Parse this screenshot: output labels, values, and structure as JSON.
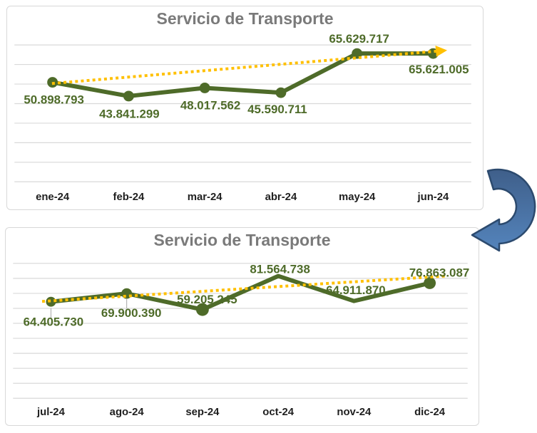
{
  "page": {
    "background": "#FFFFFF"
  },
  "colors": {
    "series_green": "#4E6B29",
    "trend_gold": "#FFC000",
    "title_gray": "#7A7A7A",
    "axis_label": "#1F1F1F",
    "gridline": "#D9D9D9",
    "leader_line": "#A6A6A6",
    "chart_border": "#D8D8D8",
    "arrow_fill_top": "#3F5F8A",
    "arrow_fill_bottom": "#5484BC",
    "arrow_outline": "#2C4A6E"
  },
  "chart_data": [
    {
      "type": "line",
      "title": "Servicio de Transporte",
      "categories": [
        "ene-24",
        "feb-24",
        "mar-24",
        "abr-24",
        "may-24",
        "jun-24"
      ],
      "series": [
        {
          "name": "Servicio de Transporte",
          "values": [
            50898793,
            43841299,
            48017562,
            45590711,
            65629717,
            65621005
          ]
        }
      ],
      "data_labels": [
        "50.898.793",
        "43.841.299",
        "48.017.562",
        "45.590.711",
        "65.629.717",
        "65.621.005"
      ],
      "trendline": {
        "style": "dotted",
        "arrowhead": true
      },
      "ylim": [
        0,
        70000000
      ],
      "gridline_step": 10000000,
      "grid": "horizontal",
      "legend": "none",
      "xlabel": "",
      "ylabel": ""
    },
    {
      "type": "line",
      "title": "Servicio de Transporte",
      "categories": [
        "jul-24",
        "ago-24",
        "sep-24",
        "oct-24",
        "nov-24",
        "dic-24"
      ],
      "series": [
        {
          "name": "Servicio de Transporte",
          "values": [
            64405730,
            69900390,
            59205245,
            81564738,
            64911870,
            76863087
          ]
        }
      ],
      "data_labels": [
        "64.405.730",
        "69.900.390",
        "59.205.245",
        "81.564.738",
        "64.911.870",
        "76.863.087"
      ],
      "trendline": {
        "style": "dotted",
        "arrowhead": false
      },
      "ylim": [
        0,
        90000000
      ],
      "gridline_step": 10000000,
      "grid": "horizontal",
      "legend": "none",
      "xlabel": "",
      "ylabel": ""
    }
  ],
  "decoration": {
    "curved_arrow": "curved arrow pointing from the end of the first chart to the start of the second chart"
  }
}
